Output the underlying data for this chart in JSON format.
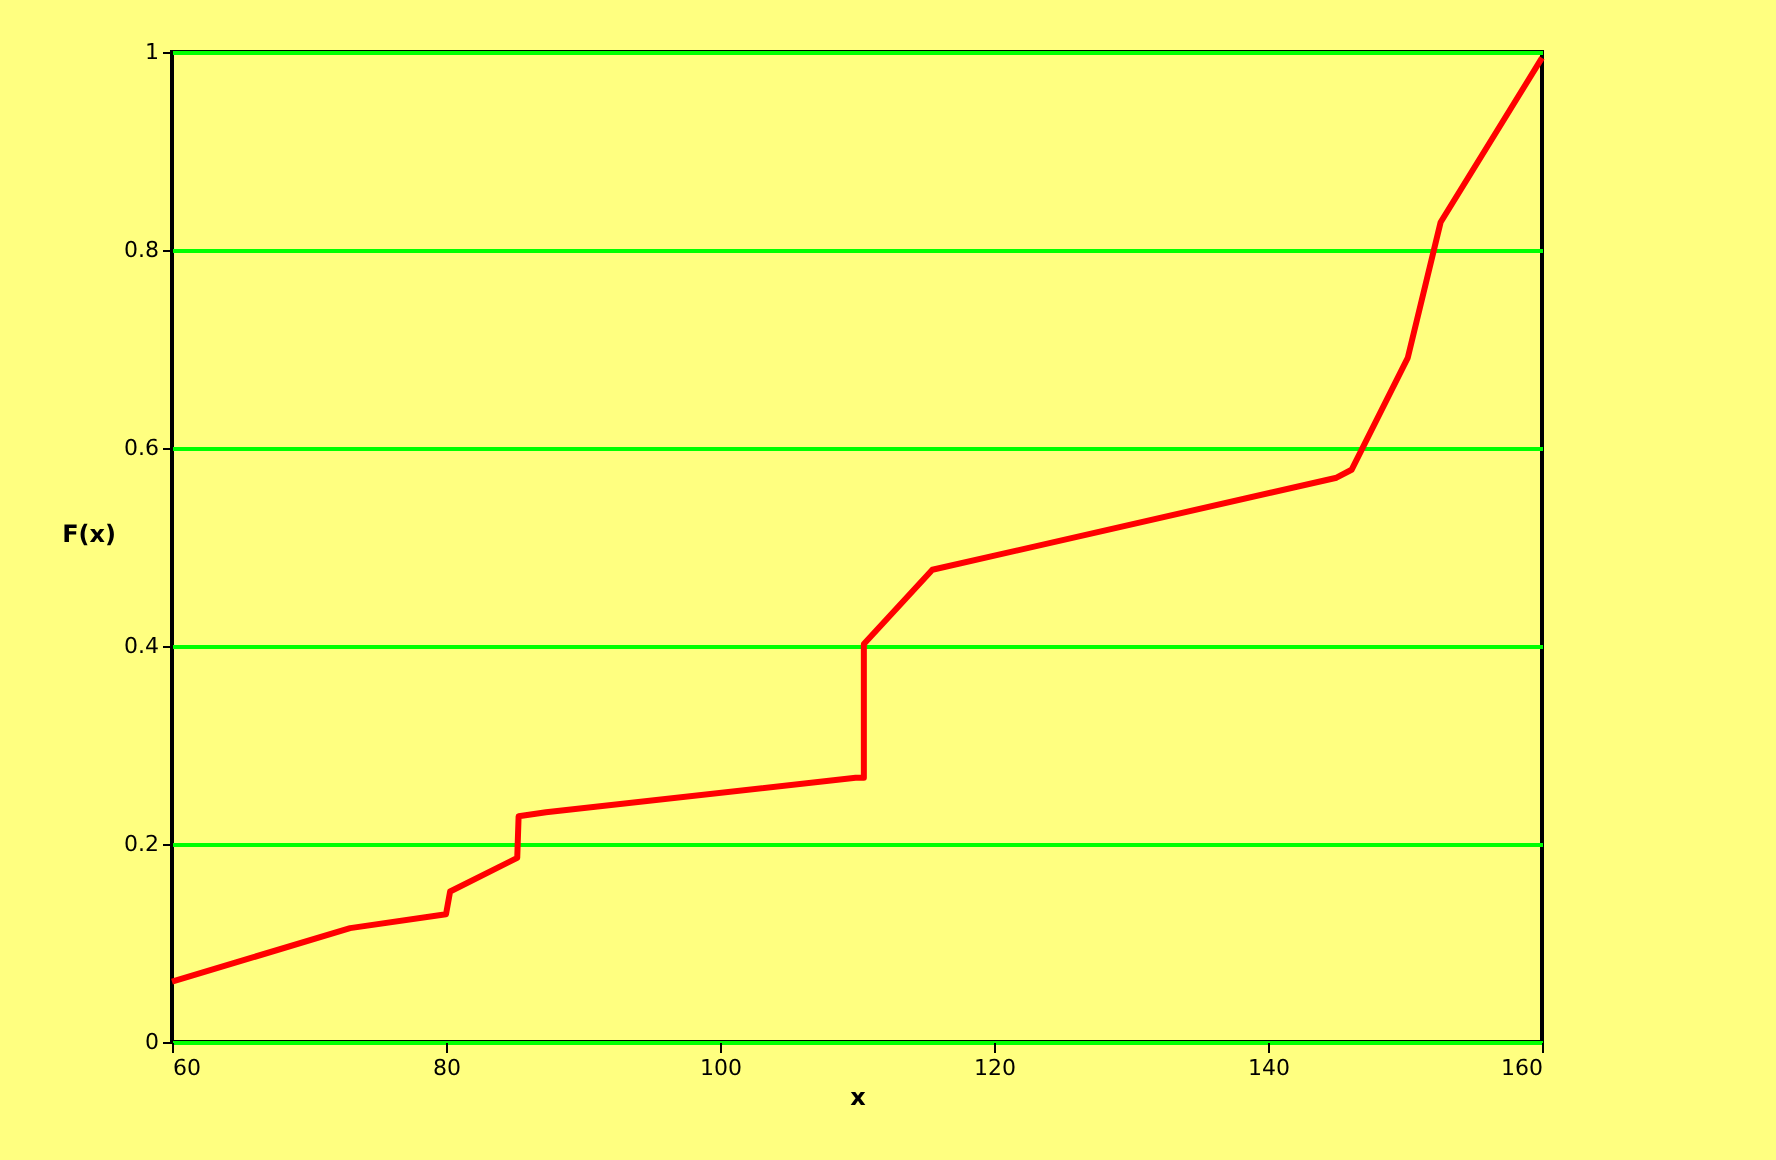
{
  "chart_data": {
    "type": "line",
    "xlabel": "x",
    "ylabel": "F(x)",
    "x": [
      60,
      73,
      80,
      80.3,
      85.2,
      85.3,
      87.3,
      109.9,
      110.5,
      110.5,
      115.5,
      145,
      146.1,
      150.2,
      152.6,
      160
    ],
    "series": [
      {
        "color": "#ff0000",
        "values": [
          0.061,
          0.115,
          0.129,
          0.152,
          0.186,
          0.228,
          0.232,
          0.267,
          0.267,
          0.402,
          0.477,
          0.57,
          0.578,
          0.691,
          0.828,
          0.994
        ]
      }
    ],
    "xlim": [
      60,
      160
    ],
    "xticks": [
      60,
      80,
      100,
      120,
      140,
      160
    ],
    "ylim": [
      0,
      1
    ],
    "yticks": [
      0,
      0.2,
      0.4,
      0.6,
      0.8,
      1
    ],
    "grid": "y",
    "marker": "none",
    "line_style": "solid"
  }
}
